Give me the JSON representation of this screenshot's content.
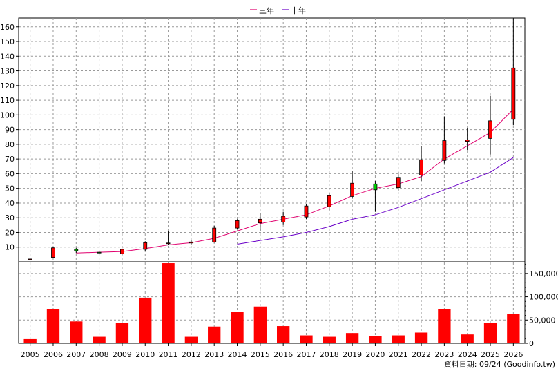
{
  "chart_data": {
    "type": "candlestick",
    "title": "",
    "xlabel": "",
    "ylabel": "",
    "legend": {
      "placement": "top-center",
      "items": [
        {
          "label": "三年",
          "color": "#e0006e"
        },
        {
          "label": "十年",
          "color": "#6a00c8"
        }
      ]
    },
    "x_categories": [
      "2005",
      "2006",
      "2007",
      "2008",
      "2009",
      "2010",
      "2011",
      "2012",
      "2013",
      "2014",
      "2015",
      "2016",
      "2017",
      "2018",
      "2019",
      "2020",
      "2021",
      "2022",
      "2023",
      "2024",
      "2025",
      "2026"
    ],
    "price_panel": {
      "ylim": [
        0,
        166
      ],
      "y_ticks": [
        10,
        20,
        30,
        40,
        50,
        60,
        70,
        80,
        90,
        100,
        110,
        120,
        130,
        140,
        150,
        160
      ],
      "y_axis_side": "left",
      "grid": true,
      "candles": [
        {
          "x": "2005",
          "open": 1.8,
          "high": 2.0,
          "low": 1.6,
          "close": 1.9
        },
        {
          "x": "2006",
          "open": 3,
          "high": 10,
          "low": 2.5,
          "close": 9.5
        },
        {
          "x": "2007",
          "open": 8.5,
          "high": 9.5,
          "low": 6,
          "close": 7.5
        },
        {
          "x": "2008",
          "open": 6.5,
          "high": 7.5,
          "low": 5,
          "close": 6
        },
        {
          "x": "2009",
          "open": 5.5,
          "high": 9,
          "low": 5,
          "close": 8.5
        },
        {
          "x": "2010",
          "open": 8.5,
          "high": 14,
          "low": 7.5,
          "close": 13
        },
        {
          "x": "2011",
          "open": 12.5,
          "high": 21,
          "low": 11.5,
          "close": 12.8
        },
        {
          "x": "2012",
          "open": 12.8,
          "high": 15,
          "low": 11.8,
          "close": 13.5
        },
        {
          "x": "2013",
          "open": 13.5,
          "high": 24.5,
          "low": 13,
          "close": 23
        },
        {
          "x": "2014",
          "open": 23,
          "high": 29,
          "low": 22.5,
          "close": 28
        },
        {
          "x": "2015",
          "open": 26.5,
          "high": 33,
          "low": 21,
          "close": 29
        },
        {
          "x": "2016",
          "open": 27,
          "high": 34,
          "low": 25,
          "close": 31
        },
        {
          "x": "2017",
          "open": 30.5,
          "high": 39,
          "low": 29,
          "close": 38
        },
        {
          "x": "2018",
          "open": 37.5,
          "high": 47,
          "low": 35,
          "close": 45
        },
        {
          "x": "2019",
          "open": 44.5,
          "high": 62,
          "low": 43,
          "close": 53.5
        },
        {
          "x": "2020",
          "open": 53,
          "high": 55,
          "low": 34,
          "close": 49
        },
        {
          "x": "2021",
          "open": 50.5,
          "high": 61,
          "low": 48,
          "close": 57.5
        },
        {
          "x": "2022",
          "open": 59,
          "high": 79,
          "low": 55,
          "close": 69.5
        },
        {
          "x": "2023",
          "open": 69,
          "high": 99,
          "low": 67,
          "close": 82.5
        },
        {
          "x": "2024",
          "open": 82,
          "high": 91,
          "low": 76,
          "close": 83
        },
        {
          "x": "2025",
          "open": 84,
          "high": 113,
          "low": 73,
          "close": 96
        },
        {
          "x": "2026",
          "open": 97,
          "high": 166,
          "low": 93,
          "close": 132
        }
      ],
      "series": [
        {
          "name": "三年",
          "color": "#e0006e",
          "x": [
            "2007",
            "2008",
            "2009",
            "2010",
            "2011",
            "2012",
            "2013",
            "2014",
            "2015",
            "2016",
            "2017",
            "2018",
            "2019",
            "2020",
            "2021",
            "2022",
            "2023",
            "2024",
            "2025",
            "2026"
          ],
          "values": [
            6,
            6.5,
            7,
            9,
            11.5,
            13,
            16,
            21,
            26,
            29,
            32,
            38,
            45,
            50,
            53,
            58,
            70,
            79,
            88,
            104
          ]
        },
        {
          "name": "十年",
          "color": "#6a00c8",
          "x": [
            "2014",
            "2015",
            "2016",
            "2017",
            "2018",
            "2019",
            "2020",
            "2021",
            "2022",
            "2023",
            "2024",
            "2025",
            "2026"
          ],
          "values": [
            12,
            14.5,
            17,
            20,
            24,
            29,
            32,
            37,
            43,
            49,
            55,
            61,
            71
          ]
        }
      ]
    },
    "volume_panel": {
      "ylim": [
        0,
        175000
      ],
      "y_ticks": [
        0,
        50000,
        100000,
        150000
      ],
      "y_tick_labels": [
        "0",
        "50,000",
        "100,000",
        "150,000"
      ],
      "y_axis_side": "right",
      "grid": true,
      "bar_color": "#ff0000",
      "values": [
        9000,
        73000,
        47000,
        14000,
        44000,
        98000,
        172000,
        14000,
        36000,
        68000,
        79000,
        37000,
        17000,
        14000,
        22000,
        16000,
        17000,
        23000,
        73000,
        19000,
        43000,
        63000
      ]
    },
    "footer_note": "資料日期: 09/24  (Goodinfo.tw)"
  }
}
